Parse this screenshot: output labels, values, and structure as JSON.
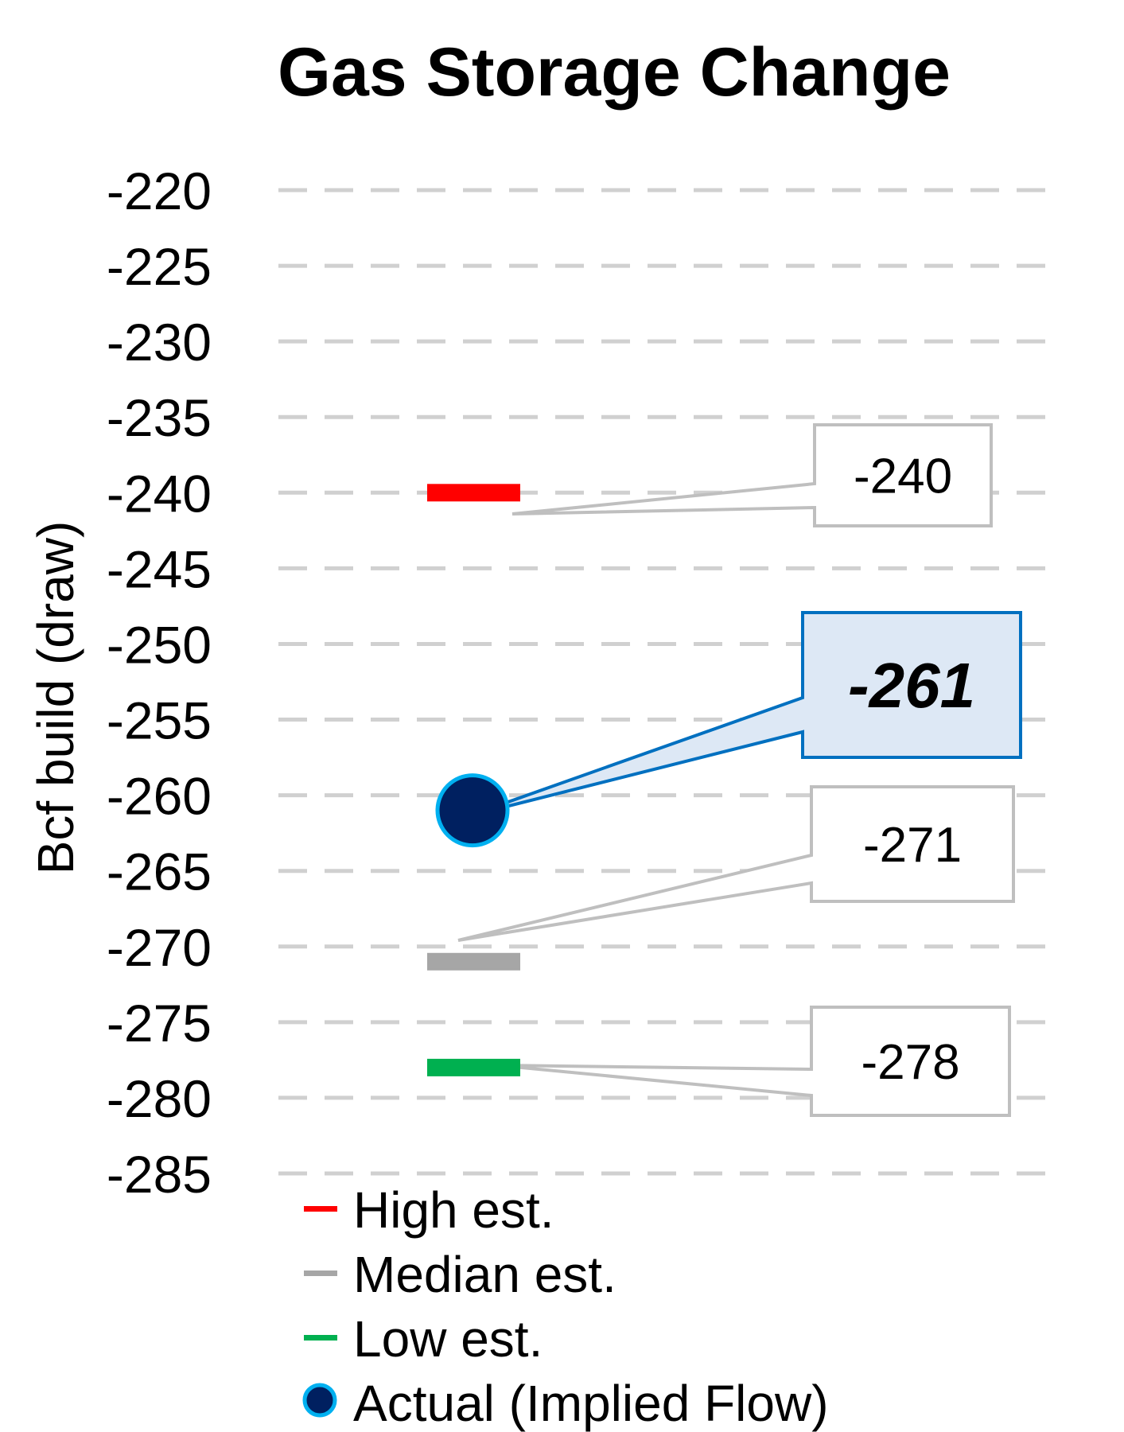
{
  "chart_data": {
    "type": "scatter",
    "title": "Gas Storage Change",
    "ylabel": "Bcf build (draw)",
    "xlabel": "",
    "ylim": [
      -285,
      -220
    ],
    "yticks": [
      -220,
      -225,
      -230,
      -235,
      -240,
      -245,
      -250,
      -255,
      -260,
      -265,
      -270,
      -275,
      -280,
      -285
    ],
    "ytick_labels": [
      "-220",
      "-225",
      "-230",
      "-235",
      "-240",
      "-245",
      "-250",
      "-255",
      "-260",
      "-265",
      "-270",
      "-275",
      "-280",
      "-285"
    ],
    "grid": true,
    "legend_position": "bottom",
    "series": [
      {
        "name": "High est.",
        "value": -240,
        "label": "-240",
        "color": "#ff0000",
        "marker": "dash"
      },
      {
        "name": "Median est.",
        "value": -271,
        "label": "-271",
        "color": "#a6a6a6",
        "marker": "dash"
      },
      {
        "name": "Low est.",
        "value": -278,
        "label": "-278",
        "color": "#00b050",
        "marker": "dash"
      },
      {
        "name": "Actual (Implied Flow)",
        "value": -261,
        "label": "-261",
        "color": "#002060",
        "edge_color": "#00b0f0",
        "marker": "circle"
      }
    ]
  }
}
